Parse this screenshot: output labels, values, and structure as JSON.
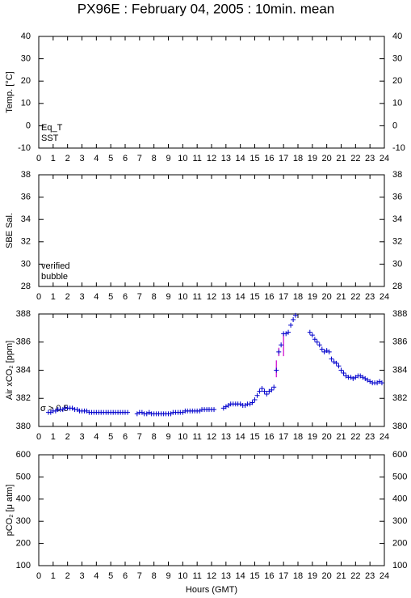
{
  "chart_data": [
    {
      "type": "scatter",
      "title": "PX96E : February 04, 2005 : 10min. mean",
      "ylabel": "Temp. [°C]",
      "xlim": [
        0,
        24
      ],
      "xticks": [
        0,
        1,
        2,
        3,
        4,
        5,
        6,
        7,
        8,
        9,
        10,
        11,
        12,
        13,
        14,
        15,
        16,
        17,
        18,
        19,
        20,
        21,
        22,
        23,
        24
      ],
      "ylim": [
        -10,
        40
      ],
      "yticks": [
        -10,
        0,
        10,
        20,
        30,
        40
      ],
      "x": [],
      "series": [
        {
          "name": "Eq_T",
          "color": "#e00000",
          "values": []
        },
        {
          "name": "SST",
          "color": "#0000cc",
          "values": []
        }
      ]
    },
    {
      "type": "scatter",
      "ylabel": "SBE Sal.",
      "xlim": [
        0,
        24
      ],
      "xticks": [
        0,
        1,
        2,
        3,
        4,
        5,
        6,
        7,
        8,
        9,
        10,
        11,
        12,
        13,
        14,
        15,
        16,
        17,
        18,
        19,
        20,
        21,
        22,
        23,
        24
      ],
      "ylim": [
        28,
        38
      ],
      "yticks": [
        28,
        30,
        32,
        34,
        36,
        38
      ],
      "x": [],
      "series": [
        {
          "name": "verified",
          "color": "#0000cc",
          "values": []
        },
        {
          "name": "bubble",
          "color": "#cc00cc",
          "values": []
        }
      ]
    },
    {
      "type": "scatter",
      "ylabel": "Air xCO₂ [ppm]",
      "annotation": "σ > 0.5",
      "annotation_color": "#cc00cc",
      "xlim": [
        0,
        24
      ],
      "xticks": [
        0,
        1,
        2,
        3,
        4,
        5,
        6,
        7,
        8,
        9,
        10,
        11,
        12,
        13,
        14,
        15,
        16,
        17,
        18,
        19,
        20,
        21,
        22,
        23,
        24
      ],
      "ylim": [
        380,
        388
      ],
      "yticks": [
        380,
        382,
        384,
        386,
        388
      ],
      "color": "#0000cc",
      "x": [
        0.67,
        0.83,
        1.0,
        1.17,
        1.33,
        1.5,
        1.67,
        1.83,
        2.0,
        2.17,
        2.33,
        2.5,
        2.67,
        2.83,
        3.0,
        3.17,
        3.33,
        3.5,
        3.67,
        3.83,
        4.0,
        4.17,
        4.33,
        4.5,
        4.67,
        4.83,
        5.0,
        5.17,
        5.33,
        5.5,
        5.67,
        5.83,
        6.0,
        6.17,
        6.83,
        7.0,
        7.17,
        7.33,
        7.5,
        7.67,
        7.83,
        8.0,
        8.17,
        8.33,
        8.5,
        8.67,
        8.83,
        9.0,
        9.17,
        9.33,
        9.5,
        9.67,
        9.83,
        10.0,
        10.17,
        10.33,
        10.5,
        10.67,
        10.83,
        11.0,
        11.17,
        11.33,
        11.5,
        11.67,
        11.83,
        12.0,
        12.17,
        12.83,
        13.0,
        13.17,
        13.33,
        13.5,
        13.67,
        13.83,
        14.0,
        14.17,
        14.33,
        14.5,
        14.67,
        14.83,
        15.0,
        15.17,
        15.33,
        15.5,
        15.67,
        15.83,
        16.0,
        16.17,
        16.33,
        16.5,
        16.67,
        16.83,
        17.0,
        17.17,
        17.33,
        17.5,
        17.67,
        17.83,
        18.83,
        19.0,
        19.17,
        19.33,
        19.5,
        19.67,
        19.83,
        20.0,
        20.17,
        20.33,
        20.5,
        20.67,
        20.83,
        21.0,
        21.17,
        21.33,
        21.5,
        21.67,
        21.83,
        22.0,
        22.17,
        22.33,
        22.5,
        22.67,
        22.83,
        23.0,
        23.17,
        23.33,
        23.5,
        23.67,
        23.83
      ],
      "values": [
        381.0,
        381.0,
        381.1,
        381.1,
        381.2,
        381.2,
        381.2,
        381.3,
        381.3,
        381.3,
        381.3,
        381.2,
        381.2,
        381.1,
        381.1,
        381.1,
        381.1,
        381.0,
        381.0,
        381.0,
        381.0,
        381.0,
        381.0,
        381.0,
        381.0,
        381.0,
        381.0,
        381.0,
        381.0,
        381.0,
        381.0,
        381.0,
        381.0,
        381.0,
        380.9,
        381.0,
        381.0,
        380.9,
        380.9,
        381.0,
        380.9,
        380.9,
        380.9,
        380.9,
        380.9,
        380.9,
        380.9,
        380.9,
        380.9,
        381.0,
        381.0,
        381.0,
        381.0,
        381.0,
        381.1,
        381.1,
        381.1,
        381.1,
        381.1,
        381.1,
        381.1,
        381.2,
        381.2,
        381.2,
        381.2,
        381.2,
        381.2,
        381.3,
        381.4,
        381.5,
        381.6,
        381.6,
        381.6,
        381.6,
        381.6,
        381.5,
        381.5,
        381.6,
        381.6,
        381.7,
        381.9,
        382.2,
        382.5,
        382.7,
        382.5,
        382.3,
        382.5,
        382.6,
        382.8,
        384.0,
        385.3,
        385.8,
        386.6,
        386.6,
        386.7,
        387.2,
        387.6,
        387.9,
        386.7,
        386.5,
        386.2,
        386.0,
        385.8,
        385.5,
        385.3,
        385.4,
        385.3,
        384.8,
        384.6,
        384.5,
        384.3,
        384.0,
        383.8,
        383.6,
        383.5,
        383.5,
        383.4,
        383.5,
        383.6,
        383.6,
        383.5,
        383.4,
        383.3,
        383.2,
        383.1,
        383.1,
        383.1,
        383.2,
        383.1
      ],
      "error_bars": {
        "x": [
          16.5,
          16.67,
          17.0
        ],
        "low": [
          383.5,
          385.0,
          385.0
        ],
        "high": [
          384.7,
          385.6,
          386.6
        ]
      }
    },
    {
      "type": "scatter",
      "ylabel": "pCO₂ [μ atm]",
      "xlabel": "Hours (GMT)",
      "xlim": [
        0,
        24
      ],
      "xticks": [
        0,
        1,
        2,
        3,
        4,
        5,
        6,
        7,
        8,
        9,
        10,
        11,
        12,
        13,
        14,
        15,
        16,
        17,
        18,
        19,
        20,
        21,
        22,
        23,
        24
      ],
      "ylim": [
        100,
        600
      ],
      "yticks": [
        100,
        200,
        300,
        400,
        500,
        600
      ],
      "x": [],
      "values": []
    }
  ]
}
